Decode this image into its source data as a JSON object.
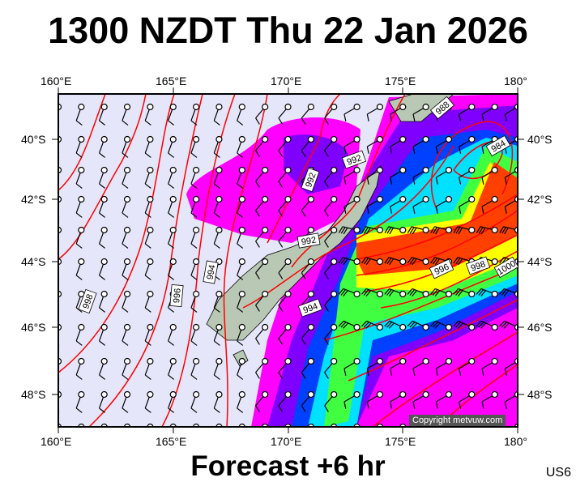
{
  "header": {
    "title": "1300 NZDT Thu 22 Jan 2026"
  },
  "footer": {
    "subtitle": "Forecast +6 hr",
    "code": "US6",
    "copyright": "Copyright metvuw.com"
  },
  "axes": {
    "lon_top": [
      "160°E",
      "165°E",
      "170°E",
      "175°E",
      "180°"
    ],
    "lon_bottom": [
      "160°E",
      "165°E",
      "170°E",
      "175°E",
      "180°"
    ],
    "lat_left": [
      "40°S",
      "42°S",
      "44°S",
      "46°S",
      "48°S"
    ],
    "lat_right": [
      "40°S",
      "42°S",
      "44°S",
      "46°S",
      "48°S"
    ]
  },
  "isobar_labels": [
    "998",
    "996",
    "994",
    "992",
    "992",
    "992",
    "994",
    "996",
    "998",
    "1000",
    "984",
    "988"
  ],
  "colors": {
    "background": "#e6e6fa",
    "isobar": "#ff0000",
    "land": "#b8c8b4",
    "rain_light": "#ff00ff",
    "rain_mid": "#8000ff",
    "rain_blue": "#0040ff",
    "rain_cyan": "#00e0ff",
    "rain_green": "#40ff40",
    "rain_yellow": "#ffff00",
    "rain_heavy": "#ff4000"
  }
}
